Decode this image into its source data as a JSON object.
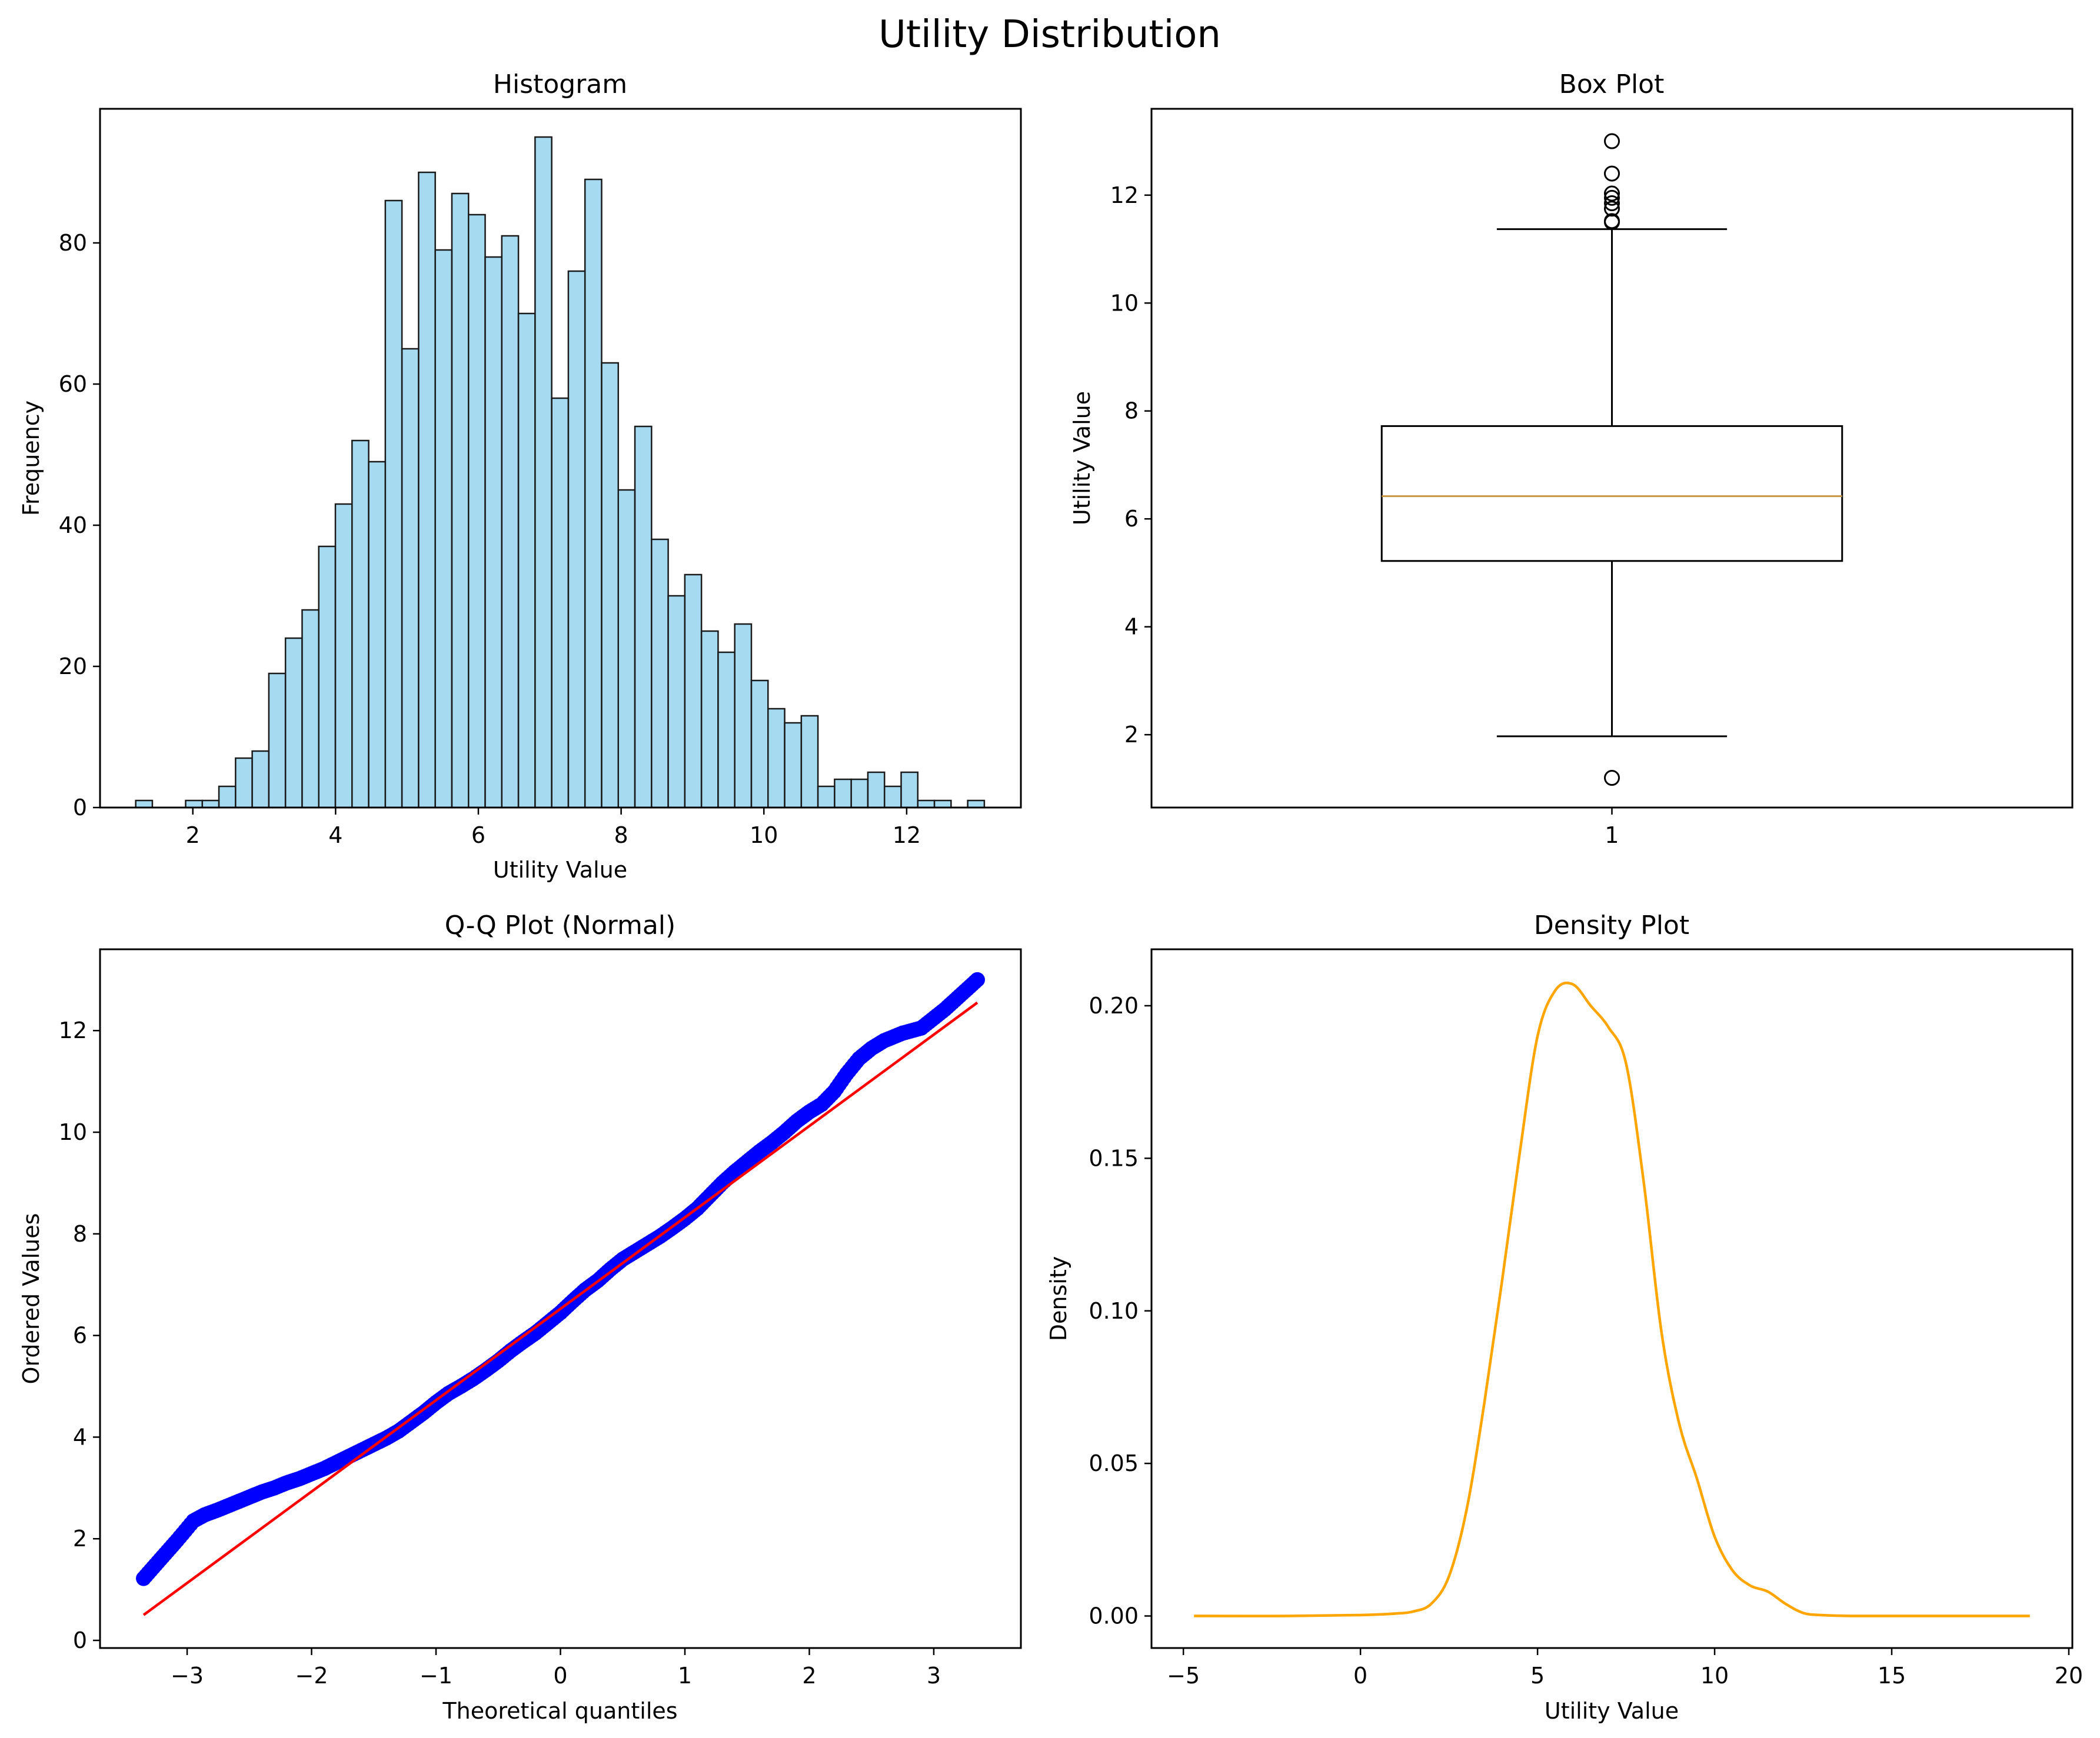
{
  "figure": {
    "title": "Utility Distribution"
  },
  "chart_data": [
    {
      "id": "histogram",
      "type": "bar",
      "title": "Histogram",
      "xlabel": "Utility Value",
      "ylabel": "Frequency",
      "xlim": [
        0.7,
        13.6
      ],
      "ylim": [
        0,
        99
      ],
      "xticks": [
        2,
        4,
        6,
        8,
        10,
        12
      ],
      "yticks": [
        0,
        20,
        40,
        60,
        80
      ],
      "bin_start": 1.2,
      "bin_width": 0.2331,
      "values": [
        1,
        0,
        0,
        1,
        1,
        3,
        7,
        8,
        19,
        24,
        28,
        37,
        43,
        52,
        49,
        86,
        65,
        90,
        79,
        87,
        84,
        78,
        81,
        70,
        95,
        58,
        76,
        89,
        63,
        45,
        54,
        38,
        30,
        33,
        25,
        22,
        26,
        18,
        14,
        12,
        13,
        3,
        4,
        4,
        5,
        3,
        5,
        1,
        1,
        0,
        1
      ],
      "colors": {
        "fill": "#87ceeb",
        "edge": "#1a1a1a"
      }
    },
    {
      "id": "boxplot",
      "type": "box",
      "title": "Box Plot",
      "xlabel": "",
      "ylabel": "Utility Value",
      "xlim": [
        0.5,
        1.5
      ],
      "ylim": [
        0.65,
        13.6
      ],
      "xticks": [
        1
      ],
      "yticks": [
        2,
        4,
        6,
        8,
        10,
        12
      ],
      "box": {
        "min": 1.97,
        "q1": 5.22,
        "median": 6.42,
        "q3": 7.72,
        "max": 11.37
      },
      "outliers": [
        1.2,
        11.5,
        11.52,
        11.75,
        11.85,
        11.95,
        12.03,
        12.4,
        13.0
      ],
      "colors": {
        "box": "#000000",
        "median": "#c8963e"
      }
    },
    {
      "id": "qqplot",
      "type": "scatter",
      "title": "Q-Q Plot (Normal)",
      "xlabel": "Theoretical quantiles",
      "ylabel": "Ordered Values",
      "xlim": [
        -3.7,
        3.7
      ],
      "ylim": [
        -0.15,
        13.6
      ],
      "xticks": [
        -3,
        -2,
        -1,
        0,
        1,
        2,
        3
      ],
      "yticks": [
        0,
        2,
        4,
        6,
        8,
        10,
        12
      ],
      "points": [
        [
          -3.35,
          1.22
        ],
        [
          -3.08,
          1.97
        ],
        [
          -2.95,
          2.35
        ],
        [
          -2.86,
          2.47
        ],
        [
          -2.75,
          2.57
        ],
        [
          -2.62,
          2.7
        ],
        [
          -2.5,
          2.82
        ],
        [
          -2.4,
          2.92
        ],
        [
          -2.3,
          3.0
        ],
        [
          -2.2,
          3.1
        ],
        [
          -2.1,
          3.18
        ],
        [
          -2.0,
          3.28
        ],
        [
          -1.9,
          3.38
        ],
        [
          -1.8,
          3.5
        ],
        [
          -1.7,
          3.62
        ],
        [
          -1.6,
          3.74
        ],
        [
          -1.5,
          3.86
        ],
        [
          -1.4,
          3.98
        ],
        [
          -1.3,
          4.12
        ],
        [
          -1.2,
          4.3
        ],
        [
          -1.1,
          4.48
        ],
        [
          -1.0,
          4.68
        ],
        [
          -0.9,
          4.86
        ],
        [
          -0.8,
          5.0
        ],
        [
          -0.7,
          5.15
        ],
        [
          -0.6,
          5.32
        ],
        [
          -0.5,
          5.5
        ],
        [
          -0.4,
          5.7
        ],
        [
          -0.3,
          5.88
        ],
        [
          -0.2,
          6.05
        ],
        [
          -0.1,
          6.25
        ],
        [
          0.0,
          6.45
        ],
        [
          0.1,
          6.68
        ],
        [
          0.2,
          6.9
        ],
        [
          0.3,
          7.08
        ],
        [
          0.4,
          7.3
        ],
        [
          0.5,
          7.5
        ],
        [
          0.6,
          7.65
        ],
        [
          0.7,
          7.8
        ],
        [
          0.8,
          7.95
        ],
        [
          0.9,
          8.12
        ],
        [
          1.0,
          8.3
        ],
        [
          1.1,
          8.5
        ],
        [
          1.2,
          8.75
        ],
        [
          1.3,
          9.0
        ],
        [
          1.4,
          9.22
        ],
        [
          1.5,
          9.42
        ],
        [
          1.6,
          9.62
        ],
        [
          1.7,
          9.8
        ],
        [
          1.8,
          10.0
        ],
        [
          1.9,
          10.22
        ],
        [
          2.0,
          10.4
        ],
        [
          2.1,
          10.55
        ],
        [
          2.2,
          10.8
        ],
        [
          2.3,
          11.15
        ],
        [
          2.4,
          11.45
        ],
        [
          2.5,
          11.65
        ],
        [
          2.6,
          11.8
        ],
        [
          2.75,
          11.95
        ],
        [
          2.9,
          12.05
        ],
        [
          3.09,
          12.42
        ],
        [
          3.35,
          13.0
        ]
      ],
      "fit_line": {
        "x": [
          -3.35,
          3.35
        ],
        "y": [
          0.5,
          12.55
        ]
      },
      "colors": {
        "points": "#0000ff",
        "line": "#ff0000"
      }
    },
    {
      "id": "density",
      "type": "line",
      "title": "Density Plot",
      "xlabel": "Utility Value",
      "ylabel": "Density",
      "xlim": [
        -5.9,
        20.1
      ],
      "ylim": [
        -0.0105,
        0.2185
      ],
      "xticks": [
        -5,
        0,
        5,
        10,
        15,
        20
      ],
      "yticks": [
        0.0,
        0.05,
        0.1,
        0.15,
        0.2
      ],
      "x": [
        -4.7,
        -2,
        0,
        1,
        1.5,
        2,
        2.5,
        3,
        3.5,
        4,
        4.5,
        5,
        5.5,
        6,
        6.5,
        7,
        7.5,
        8,
        8.5,
        9,
        9.5,
        10,
        10.5,
        11,
        11.5,
        12,
        12.5,
        13,
        14,
        16,
        18.9
      ],
      "y": [
        0,
        0,
        0.0003,
        0.0008,
        0.0015,
        0.004,
        0.013,
        0.035,
        0.07,
        0.11,
        0.152,
        0.19,
        0.205,
        0.207,
        0.2,
        0.193,
        0.181,
        0.142,
        0.093,
        0.063,
        0.045,
        0.026,
        0.015,
        0.01,
        0.008,
        0.004,
        0.001,
        0.0003,
        0,
        0,
        0
      ],
      "colors": {
        "line": "#ffa500"
      }
    }
  ]
}
